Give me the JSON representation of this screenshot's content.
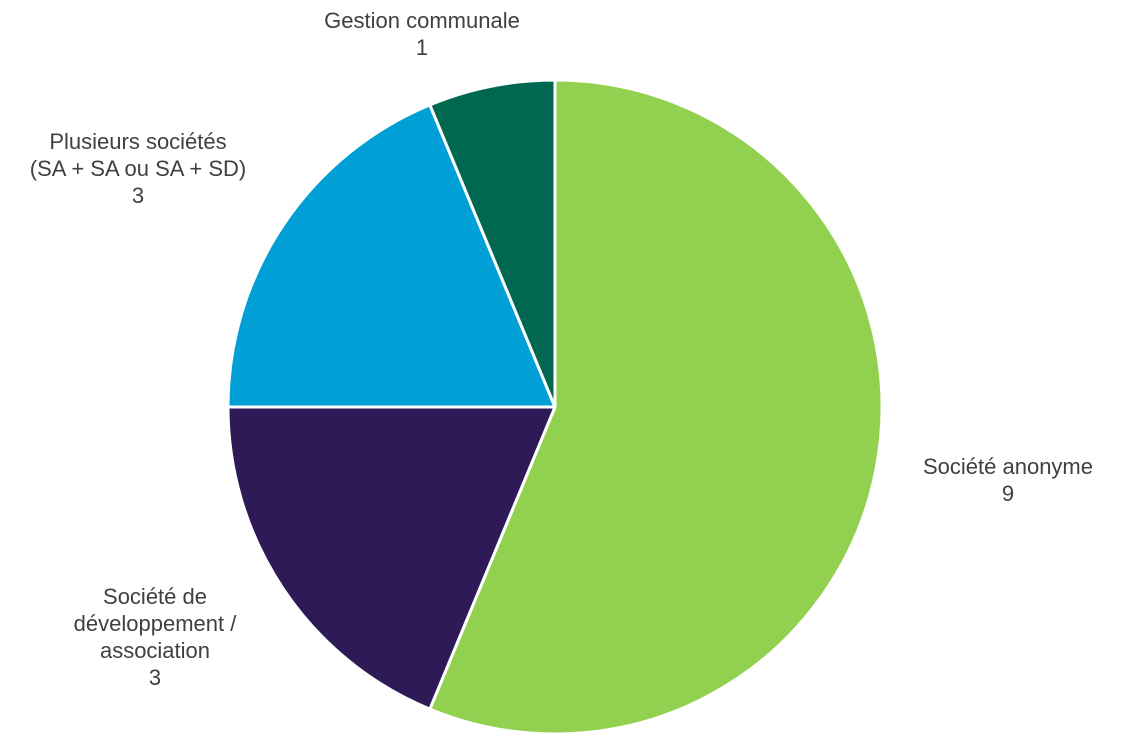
{
  "chart_data": {
    "type": "pie",
    "title": "",
    "start_angle_deg": 0,
    "direction": "clockwise",
    "slice_border_color": "#ffffff",
    "slices": [
      {
        "name": "Société anonyme",
        "label_lines": [
          "Société anonyme"
        ],
        "value": 9,
        "value_label": "9",
        "color": "#92d050"
      },
      {
        "name": "Société de développement / association",
        "label_lines": [
          "Société de",
          "développement /",
          "association"
        ],
        "value": 3,
        "value_label": "3",
        "color": "#2e1a57"
      },
      {
        "name": "Plusieurs sociétés (SA + SA ou SA + SD)",
        "label_lines": [
          "Plusieurs sociétés",
          "(SA + SA ou SA + SD)"
        ],
        "value": 3,
        "value_label": "3",
        "color": "#00a0d6"
      },
      {
        "name": "Gestion communale",
        "label_lines": [
          "Gestion communale"
        ],
        "value": 1,
        "value_label": "1",
        "color": "#006851"
      }
    ]
  }
}
